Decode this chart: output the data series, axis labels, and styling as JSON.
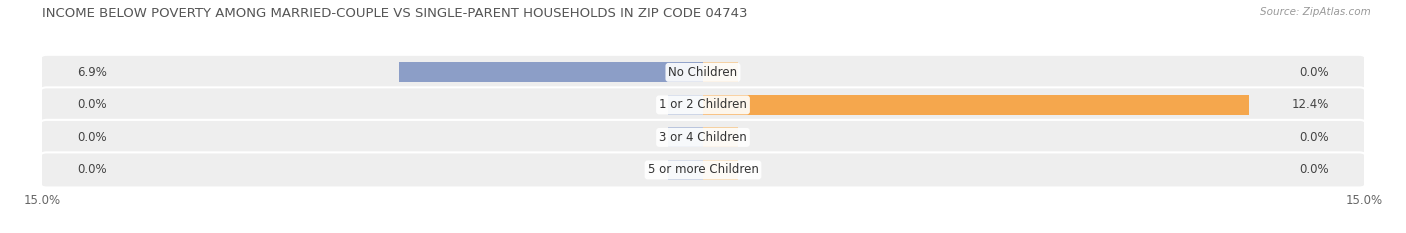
{
  "title": "INCOME BELOW POVERTY AMONG MARRIED-COUPLE VS SINGLE-PARENT HOUSEHOLDS IN ZIP CODE 04743",
  "source": "Source: ZipAtlas.com",
  "categories": [
    "No Children",
    "1 or 2 Children",
    "3 or 4 Children",
    "5 or more Children"
  ],
  "married_values": [
    6.9,
    0.0,
    0.0,
    0.0
  ],
  "single_values": [
    0.0,
    12.4,
    0.0,
    0.0
  ],
  "xlim": 15.0,
  "married_color": "#8c9ec7",
  "married_color_zero": "#b8c4dc",
  "single_color": "#f5a74d",
  "single_color_zero": "#f5d0a0",
  "background_color": "#ffffff",
  "row_color": "#eeeeee",
  "title_fontsize": 9.5,
  "label_fontsize": 8.5,
  "value_fontsize": 8.5,
  "tick_fontsize": 8.5,
  "legend_fontsize": 8.5,
  "source_fontsize": 7.5,
  "figsize": [
    14.06,
    2.33
  ],
  "dpi": 100
}
